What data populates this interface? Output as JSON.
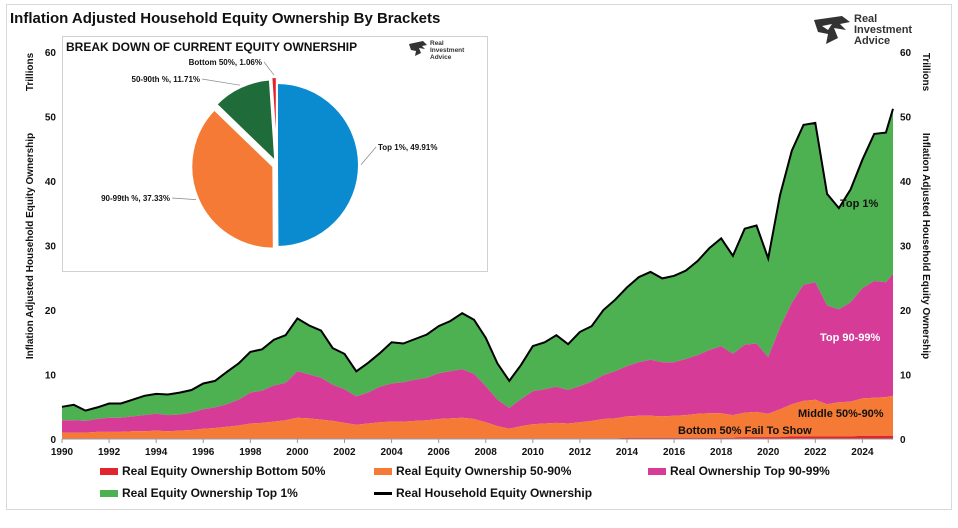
{
  "title": "Inflation Adjusted Household Equity Ownership By Brackets",
  "logo": {
    "line1": "Real",
    "line2": "Investment",
    "line3": "Advice",
    "icon": "eagle-head-icon"
  },
  "chart_data": [
    {
      "type": "area",
      "ylabel_left": "Trillions",
      "ylabel_left2": "Inflation Adjusted Household Equity Ownership",
      "ylabel_right": "Trillions",
      "ylabel_right2": "Inflation Adjusted Household Equity Ownership",
      "ylim": [
        0,
        60
      ],
      "yticks": [
        0,
        10,
        20,
        30,
        40,
        50,
        60
      ],
      "xlim": [
        1990,
        2025.3
      ],
      "xticks": [
        "1990",
        "1992",
        "1994",
        "1996",
        "1998",
        "2000",
        "2002",
        "2004",
        "2006",
        "2008",
        "2010",
        "2012",
        "2014",
        "2016",
        "2018",
        "2020",
        "2022",
        "2024"
      ],
      "x": [
        1990,
        1990.5,
        1991,
        1991.5,
        1992,
        1992.5,
        1993,
        1993.5,
        1994,
        1994.5,
        1995,
        1995.5,
        1996,
        1996.5,
        1997,
        1997.5,
        1998,
        1998.5,
        1999,
        1999.5,
        2000,
        2000.5,
        2001,
        2001.5,
        2002,
        2002.5,
        2003,
        2003.5,
        2004,
        2004.5,
        2005,
        2005.5,
        2006,
        2006.5,
        2007,
        2007.5,
        2008,
        2008.5,
        2009,
        2009.5,
        2010,
        2010.5,
        2011,
        2011.5,
        2012,
        2012.5,
        2013,
        2013.5,
        2014,
        2014.5,
        2015,
        2015.5,
        2016,
        2016.5,
        2017,
        2017.5,
        2018,
        2018.5,
        2019,
        2019.5,
        2020,
        2020.5,
        2021,
        2021.5,
        2022,
        2022.5,
        2023,
        2023.5,
        2024,
        2024.5,
        2025,
        2025.3
      ],
      "series": [
        {
          "name": "Real Equity Ownership Bottom 50%",
          "color": "#e0262c",
          "values": [
            0.1,
            0.1,
            0.1,
            0.1,
            0.1,
            0.1,
            0.1,
            0.1,
            0.1,
            0.1,
            0.1,
            0.1,
            0.1,
            0.1,
            0.1,
            0.1,
            0.1,
            0.1,
            0.1,
            0.1,
            0.1,
            0.1,
            0.1,
            0.1,
            0.1,
            0.1,
            0.1,
            0.1,
            0.1,
            0.1,
            0.1,
            0.1,
            0.1,
            0.1,
            0.1,
            0.1,
            0.1,
            0.1,
            0.1,
            0.1,
            0.1,
            0.1,
            0.1,
            0.1,
            0.1,
            0.1,
            0.1,
            0.1,
            0.2,
            0.2,
            0.2,
            0.2,
            0.2,
            0.2,
            0.2,
            0.2,
            0.2,
            0.2,
            0.3,
            0.3,
            0.3,
            0.3,
            0.4,
            0.4,
            0.4,
            0.4,
            0.4,
            0.4,
            0.5,
            0.5,
            0.5,
            0.5
          ]
        },
        {
          "name": "Real Equity Ownership 50-90%",
          "color": "#f47a35",
          "values": [
            0.9,
            0.9,
            0.9,
            1.0,
            1.0,
            1.0,
            1.1,
            1.1,
            1.2,
            1.1,
            1.2,
            1.3,
            1.5,
            1.6,
            1.8,
            2.0,
            2.3,
            2.4,
            2.6,
            2.8,
            3.2,
            3.1,
            2.9,
            2.7,
            2.4,
            2.1,
            2.3,
            2.5,
            2.6,
            2.6,
            2.7,
            2.8,
            3.0,
            3.1,
            3.2,
            3.0,
            2.5,
            1.9,
            1.5,
            1.9,
            2.2,
            2.3,
            2.4,
            2.3,
            2.5,
            2.7,
            3.0,
            3.1,
            3.3,
            3.4,
            3.4,
            3.3,
            3.4,
            3.5,
            3.7,
            3.8,
            3.8,
            3.5,
            3.8,
            3.9,
            3.6,
            4.3,
            5.0,
            5.5,
            5.7,
            5.0,
            5.3,
            5.4,
            5.8,
            5.9,
            6.0,
            6.2
          ]
        },
        {
          "name": "Real Ownership Top 90-99%",
          "color": "#d63b97",
          "values": [
            1.9,
            1.9,
            1.8,
            2.0,
            2.2,
            2.2,
            2.3,
            2.5,
            2.6,
            2.5,
            2.5,
            2.7,
            3.0,
            3.2,
            3.5,
            4.0,
            4.8,
            5.0,
            5.6,
            5.8,
            7.2,
            6.8,
            6.5,
            5.6,
            5.2,
            4.4,
            4.8,
            5.5,
            5.9,
            6.1,
            6.4,
            6.6,
            7.1,
            7.3,
            7.5,
            7.0,
            5.6,
            4.1,
            3.2,
            4.2,
            5.1,
            5.3,
            5.6,
            5.2,
            5.6,
            6.1,
            6.8,
            7.3,
            7.8,
            8.3,
            8.7,
            8.4,
            8.3,
            8.7,
            9.1,
            9.8,
            10.4,
            9.5,
            10.5,
            10.6,
            8.8,
            12.7,
            15.7,
            18.0,
            18.2,
            15.3,
            14.4,
            15.4,
            17.1,
            18.1,
            17.8,
            18.9
          ]
        },
        {
          "name": "Real Equity Ownership Top 1%",
          "color": "#4db151",
          "values": [
            2.1,
            2.4,
            1.6,
            1.8,
            2.2,
            2.2,
            2.6,
            3.0,
            3.1,
            3.2,
            3.4,
            3.5,
            4.0,
            4.1,
            5.0,
            5.6,
            6.3,
            6.4,
            7.1,
            7.4,
            8.2,
            7.6,
            7.3,
            5.7,
            5.5,
            3.9,
            4.6,
            5.2,
            6.4,
            6.0,
            6.3,
            6.7,
            7.3,
            7.8,
            8.7,
            8.4,
            7.5,
            5.6,
            4.2,
            5.3,
            7.0,
            7.3,
            8.0,
            7.1,
            8.4,
            8.6,
            10.1,
            11.1,
            12.2,
            13.2,
            13.6,
            13.0,
            13.4,
            13.7,
            14.6,
            15.8,
            16.7,
            15.2,
            18.0,
            18.3,
            15.3,
            20.5,
            23.6,
            24.8,
            24.7,
            17.3,
            15.7,
            17.5,
            19.9,
            22.8,
            23.2,
            25.6
          ]
        },
        {
          "name": "Real Household Equity Ownership",
          "color": "#000000",
          "values": [
            5.0,
            5.3,
            4.4,
            4.9,
            5.5,
            5.5,
            6.1,
            6.7,
            7.0,
            6.9,
            7.2,
            7.6,
            8.6,
            9.0,
            10.4,
            11.7,
            13.5,
            13.9,
            15.4,
            16.1,
            18.7,
            17.6,
            16.8,
            14.1,
            13.2,
            10.5,
            11.8,
            13.3,
            15.0,
            14.8,
            15.5,
            16.2,
            17.5,
            18.3,
            19.5,
            18.5,
            15.7,
            11.7,
            9.0,
            11.5,
            14.4,
            15.0,
            16.1,
            14.7,
            16.6,
            17.5,
            20.0,
            21.6,
            23.5,
            25.1,
            25.9,
            24.9,
            25.3,
            26.1,
            27.6,
            29.6,
            31.1,
            28.4,
            32.6,
            33.1,
            28.0,
            37.8,
            44.7,
            48.7,
            49.0,
            38.0,
            35.8,
            38.7,
            43.3,
            47.3,
            47.5,
            51.2
          ]
        }
      ],
      "annotations": [
        "Top 1%",
        "Top 90-99%",
        "Middle 50%-90%",
        "Bottom 50% Fail To Show"
      ],
      "legend_position": "bottom"
    },
    {
      "type": "pie",
      "title": "BREAK DOWN OF CURRENT EQUITY OWNERSHIP",
      "slices": [
        {
          "label": "Top 1%, 49.91%",
          "value": 49.91,
          "color": "#0a8bd0"
        },
        {
          "label": "90-99th %, 37.33%",
          "value": 37.33,
          "color": "#f47a35"
        },
        {
          "label": "50-90th %, 11.71%",
          "value": 11.71,
          "color": "#1f6b3a"
        },
        {
          "label": "Bottom 50%, 1.06%",
          "value": 1.06,
          "color": "#e0262c"
        }
      ]
    }
  ],
  "legend": [
    {
      "label": "Real Equity Ownership Bottom 50%",
      "color": "#e0262c"
    },
    {
      "label": "Real Equity Ownership 50-90%",
      "color": "#f47a35"
    },
    {
      "label": "Real Ownership Top 90-99%",
      "color": "#d63b97"
    },
    {
      "label": "Real Equity Ownership Top 1%",
      "color": "#4db151"
    },
    {
      "label": "Real Household Equity Ownership",
      "color": "#000000"
    }
  ]
}
